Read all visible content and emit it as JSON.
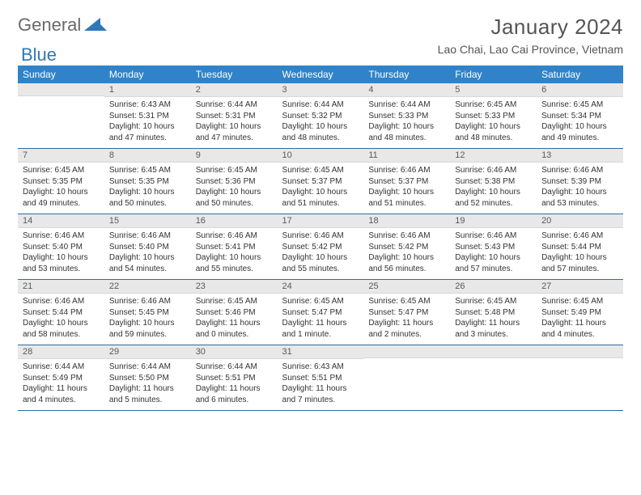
{
  "brand": {
    "part1": "General",
    "part2": "Blue",
    "triangle_color": "#2f77b8"
  },
  "title": "January 2024",
  "location": "Lao Chai, Lao Cai Province, Vietnam",
  "header_bg": "#3083c8",
  "dow": [
    "Sunday",
    "Monday",
    "Tuesday",
    "Wednesday",
    "Thursday",
    "Friday",
    "Saturday"
  ],
  "text_fontsize": 10,
  "weeks": [
    [
      null,
      {
        "n": "1",
        "sr": "6:43 AM",
        "ss": "5:31 PM",
        "dl": "10 hours and 47 minutes."
      },
      {
        "n": "2",
        "sr": "6:44 AM",
        "ss": "5:31 PM",
        "dl": "10 hours and 47 minutes."
      },
      {
        "n": "3",
        "sr": "6:44 AM",
        "ss": "5:32 PM",
        "dl": "10 hours and 48 minutes."
      },
      {
        "n": "4",
        "sr": "6:44 AM",
        "ss": "5:33 PM",
        "dl": "10 hours and 48 minutes."
      },
      {
        "n": "5",
        "sr": "6:45 AM",
        "ss": "5:33 PM",
        "dl": "10 hours and 48 minutes."
      },
      {
        "n": "6",
        "sr": "6:45 AM",
        "ss": "5:34 PM",
        "dl": "10 hours and 49 minutes."
      }
    ],
    [
      {
        "n": "7",
        "sr": "6:45 AM",
        "ss": "5:35 PM",
        "dl": "10 hours and 49 minutes."
      },
      {
        "n": "8",
        "sr": "6:45 AM",
        "ss": "5:35 PM",
        "dl": "10 hours and 50 minutes."
      },
      {
        "n": "9",
        "sr": "6:45 AM",
        "ss": "5:36 PM",
        "dl": "10 hours and 50 minutes."
      },
      {
        "n": "10",
        "sr": "6:45 AM",
        "ss": "5:37 PM",
        "dl": "10 hours and 51 minutes."
      },
      {
        "n": "11",
        "sr": "6:46 AM",
        "ss": "5:37 PM",
        "dl": "10 hours and 51 minutes."
      },
      {
        "n": "12",
        "sr": "6:46 AM",
        "ss": "5:38 PM",
        "dl": "10 hours and 52 minutes."
      },
      {
        "n": "13",
        "sr": "6:46 AM",
        "ss": "5:39 PM",
        "dl": "10 hours and 53 minutes."
      }
    ],
    [
      {
        "n": "14",
        "sr": "6:46 AM",
        "ss": "5:40 PM",
        "dl": "10 hours and 53 minutes."
      },
      {
        "n": "15",
        "sr": "6:46 AM",
        "ss": "5:40 PM",
        "dl": "10 hours and 54 minutes."
      },
      {
        "n": "16",
        "sr": "6:46 AM",
        "ss": "5:41 PM",
        "dl": "10 hours and 55 minutes."
      },
      {
        "n": "17",
        "sr": "6:46 AM",
        "ss": "5:42 PM",
        "dl": "10 hours and 55 minutes."
      },
      {
        "n": "18",
        "sr": "6:46 AM",
        "ss": "5:42 PM",
        "dl": "10 hours and 56 minutes."
      },
      {
        "n": "19",
        "sr": "6:46 AM",
        "ss": "5:43 PM",
        "dl": "10 hours and 57 minutes."
      },
      {
        "n": "20",
        "sr": "6:46 AM",
        "ss": "5:44 PM",
        "dl": "10 hours and 57 minutes."
      }
    ],
    [
      {
        "n": "21",
        "sr": "6:46 AM",
        "ss": "5:44 PM",
        "dl": "10 hours and 58 minutes."
      },
      {
        "n": "22",
        "sr": "6:46 AM",
        "ss": "5:45 PM",
        "dl": "10 hours and 59 minutes."
      },
      {
        "n": "23",
        "sr": "6:45 AM",
        "ss": "5:46 PM",
        "dl": "11 hours and 0 minutes."
      },
      {
        "n": "24",
        "sr": "6:45 AM",
        "ss": "5:47 PM",
        "dl": "11 hours and 1 minute."
      },
      {
        "n": "25",
        "sr": "6:45 AM",
        "ss": "5:47 PM",
        "dl": "11 hours and 2 minutes."
      },
      {
        "n": "26",
        "sr": "6:45 AM",
        "ss": "5:48 PM",
        "dl": "11 hours and 3 minutes."
      },
      {
        "n": "27",
        "sr": "6:45 AM",
        "ss": "5:49 PM",
        "dl": "11 hours and 4 minutes."
      }
    ],
    [
      {
        "n": "28",
        "sr": "6:44 AM",
        "ss": "5:49 PM",
        "dl": "11 hours and 4 minutes."
      },
      {
        "n": "29",
        "sr": "6:44 AM",
        "ss": "5:50 PM",
        "dl": "11 hours and 5 minutes."
      },
      {
        "n": "30",
        "sr": "6:44 AM",
        "ss": "5:51 PM",
        "dl": "11 hours and 6 minutes."
      },
      {
        "n": "31",
        "sr": "6:43 AM",
        "ss": "5:51 PM",
        "dl": "11 hours and 7 minutes."
      },
      null,
      null,
      null
    ]
  ]
}
